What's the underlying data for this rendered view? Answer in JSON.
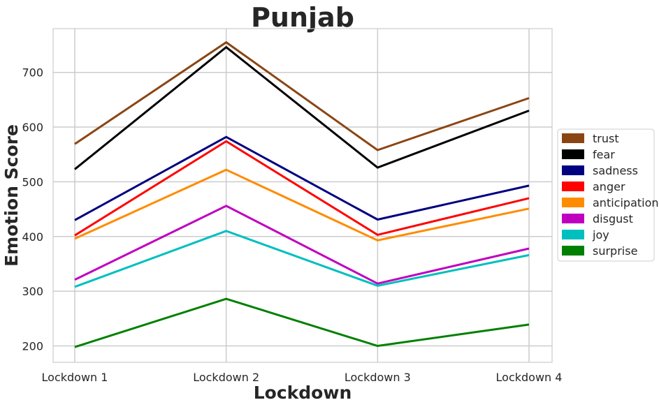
{
  "chart_data": {
    "type": "line",
    "title": "Punjab",
    "xlabel": "Lockdown",
    "ylabel": "Emotion Score",
    "categories": [
      "Lockdown 1",
      "Lockdown 2",
      "Lockdown 3",
      "Lockdown 4"
    ],
    "ylim": [
      170,
      780
    ],
    "yticks": [
      200,
      300,
      400,
      500,
      600,
      700
    ],
    "grid": true,
    "legend_position": "right",
    "series": [
      {
        "name": "trust",
        "color": "#8B4513",
        "values": [
          569,
          755,
          558,
          653
        ]
      },
      {
        "name": "fear",
        "color": "#000000",
        "values": [
          523,
          746,
          526,
          630
        ]
      },
      {
        "name": "sadness",
        "color": "#000080",
        "values": [
          430,
          582,
          431,
          493
        ]
      },
      {
        "name": "anger",
        "color": "#FF0000",
        "values": [
          402,
          574,
          403,
          470
        ]
      },
      {
        "name": "anticipation",
        "color": "#FF8C00",
        "values": [
          396,
          522,
          393,
          451
        ]
      },
      {
        "name": "disgust",
        "color": "#C000C0",
        "values": [
          321,
          456,
          314,
          378
        ]
      },
      {
        "name": "joy",
        "color": "#00BFBF",
        "values": [
          308,
          410,
          310,
          366
        ]
      },
      {
        "name": "surprise",
        "color": "#008000",
        "values": [
          198,
          286,
          200,
          239
        ]
      }
    ]
  }
}
